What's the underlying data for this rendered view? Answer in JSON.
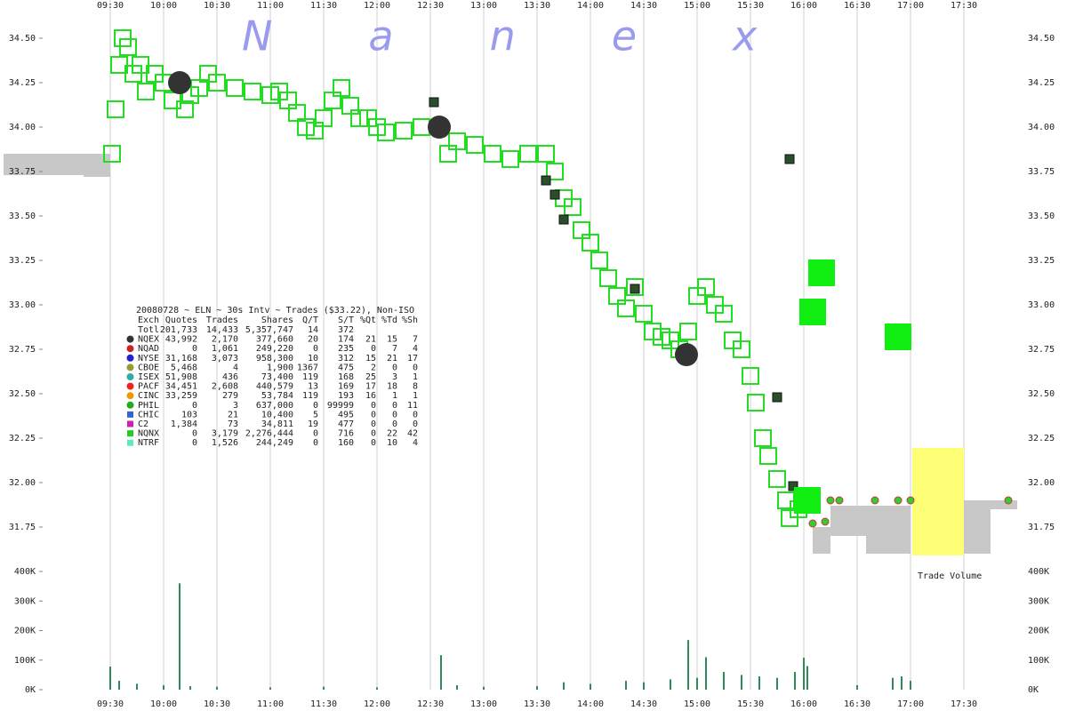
{
  "chart_data": {
    "type": "trades",
    "watermark": "Nanex",
    "annotation": "Trade Volume",
    "xlim": [
      "08:28",
      "18:28"
    ],
    "xticks": [
      "09:30",
      "10:00",
      "10:30",
      "11:00",
      "11:30",
      "12:00",
      "12:30",
      "13:00",
      "13:30",
      "14:00",
      "14:30",
      "15:00",
      "15:30",
      "16:00",
      "16:30",
      "17:00",
      "17:30"
    ],
    "grid": true,
    "ylim": [
      31.6,
      34.7
    ],
    "yticks": [
      31.75,
      {
        "value": 32,
        "label": "32.00"
      },
      32.25,
      {
        "value": 32.5,
        "label": "32.50"
      },
      32.75,
      {
        "value": 33,
        "label": "33.00"
      },
      33.25,
      {
        "value": 33.5,
        "label": "33.50"
      },
      33.75,
      {
        "value": 34,
        "label": "34.00"
      },
      34.25,
      {
        "value": 34.5,
        "label": "34.50"
      }
    ],
    "volume_ylim": [
      0,
      400000
    ],
    "volume_yticks": [
      {
        "value": 0,
        "label": "0K"
      },
      {
        "value": 100000,
        "label": "100K"
      },
      {
        "value": 200000,
        "label": "200K"
      },
      {
        "value": 300000,
        "label": "300K"
      },
      {
        "value": 400000,
        "label": "400K"
      }
    ],
    "spread": {
      "color": "#c8c8c8",
      "x": [
        "08:30",
        "09:15",
        "16:05",
        "16:15",
        "16:35",
        "17:30",
        "17:45"
      ],
      "x_end": [
        "09:15",
        "09:30",
        "16:15",
        "16:35",
        "17:00",
        "17:45",
        "18:00"
      ],
      "low": [
        33.73,
        33.72,
        31.6,
        31.7,
        31.6,
        31.6,
        31.85
      ],
      "high": [
        33.85,
        33.85,
        31.75,
        31.87,
        31.87,
        31.9,
        31.9
      ]
    },
    "series": [
      {
        "marker": "open-square",
        "color": "#22dd22",
        "x": [
          "09:31",
          "09:33",
          "09:35",
          "09:37",
          "09:40",
          "09:43",
          "09:47",
          "09:50",
          "09:55",
          "10:00",
          "10:05",
          "10:12",
          "10:15",
          "10:20",
          "10:25",
          "10:30",
          "10:40",
          "10:50",
          "11:00",
          "11:05",
          "11:10",
          "11:15",
          "11:20",
          "11:25",
          "11:30",
          "11:35",
          "11:40",
          "11:45",
          "11:50",
          "11:55",
          "12:00",
          "12:05",
          "12:15",
          "12:25",
          "12:40",
          "12:45",
          "12:55",
          "13:05",
          "13:15",
          "13:25",
          "13:35",
          "13:40",
          "13:45",
          "13:50",
          "13:55",
          "14:00",
          "14:05",
          "14:10",
          "14:15",
          "14:20",
          "14:25",
          "14:30",
          "14:35",
          "14:40",
          "14:45",
          "14:50",
          "14:55",
          "15:00",
          "15:05",
          "15:10",
          "15:15",
          "15:20",
          "15:25",
          "15:30",
          "15:33",
          "15:37",
          "15:40",
          "15:45",
          "15:50",
          "15:52",
          "15:57",
          "16:00"
        ],
        "values": [
          33.85,
          34.1,
          34.35,
          34.5,
          34.45,
          34.3,
          34.35,
          34.2,
          34.3,
          34.25,
          34.15,
          34.1,
          34.18,
          34.22,
          34.3,
          34.25,
          34.22,
          34.2,
          34.18,
          34.2,
          34.15,
          34.08,
          34.0,
          33.98,
          34.05,
          34.15,
          34.22,
          34.12,
          34.05,
          34.05,
          34.0,
          33.97,
          33.98,
          34.0,
          33.85,
          33.92,
          33.9,
          33.85,
          33.82,
          33.85,
          33.85,
          33.75,
          33.6,
          33.55,
          33.42,
          33.35,
          33.25,
          33.15,
          33.05,
          32.98,
          33.1,
          32.95,
          32.85,
          32.82,
          32.8,
          32.75,
          32.85,
          33.05,
          33.1,
          33.0,
          32.95,
          32.8,
          32.75,
          32.6,
          32.45,
          32.25,
          32.15,
          32.02,
          31.9,
          31.8,
          31.85,
          31.9
        ]
      },
      {
        "marker": "circle",
        "color": "#333333",
        "x": [
          "10:09",
          "12:35",
          "14:54"
        ],
        "values": [
          34.25,
          34.0,
          32.72
        ]
      },
      {
        "marker": "square",
        "color": "#2b4f2b",
        "x": [
          "12:32",
          "13:35",
          "13:40",
          "13:45",
          "14:25",
          "15:45",
          "15:52",
          "15:54"
        ],
        "values": [
          34.14,
          33.7,
          33.62,
          33.48,
          33.09,
          32.48,
          33.82,
          31.98
        ]
      },
      {
        "marker": "filled-square",
        "color": "#11ee11",
        "x": [
          "16:02",
          "16:05",
          "16:10",
          "16:53"
        ],
        "values": [
          31.9,
          32.96,
          33.18,
          32.82
        ]
      },
      {
        "marker": "dot",
        "color": "#33cc33",
        "x": [
          "16:05",
          "16:12",
          "16:15",
          "16:20",
          "16:40",
          "16:53",
          "17:00",
          "17:55"
        ],
        "values": [
          31.77,
          31.78,
          31.9,
          31.9,
          31.9,
          31.9,
          31.9,
          31.9
        ]
      }
    ],
    "volume": {
      "color": "#2e8b57",
      "x": [
        "09:30",
        "09:35",
        "09:45",
        "10:00",
        "10:09",
        "10:15",
        "10:30",
        "11:00",
        "11:30",
        "12:00",
        "12:36",
        "12:45",
        "13:00",
        "13:30",
        "13:45",
        "14:00",
        "14:20",
        "14:30",
        "14:45",
        "14:55",
        "15:00",
        "15:05",
        "15:15",
        "15:25",
        "15:35",
        "15:45",
        "15:55",
        "16:00",
        "16:02",
        "16:30",
        "16:50",
        "16:55",
        "17:00"
      ],
      "values": [
        78000,
        30000,
        20000,
        15000,
        360000,
        12000,
        10000,
        8000,
        10000,
        8000,
        117000,
        15000,
        10000,
        12000,
        25000,
        20000,
        30000,
        25000,
        35000,
        168000,
        40000,
        110000,
        60000,
        50000,
        45000,
        40000,
        60000,
        108000,
        80000,
        15000,
        40000,
        45000,
        30000
      ]
    },
    "legend": {
      "header": "20080728 ~ ELN ~ 30s Intv ~ Trades ($33.22), Non-ISO",
      "columns": [
        "Exch",
        "Quotes",
        "Trades",
        "Shares",
        "Q/T",
        "S/T",
        "%Qt",
        "%Td",
        "%Sh"
      ],
      "rows": [
        {
          "cells": [
            "Totl",
            "201,733",
            "14,433",
            "5,357,747",
            "14",
            "372"
          ]
        },
        {
          "cells": [
            "NQEX",
            "43,992",
            "2,170",
            "377,660",
            "20",
            "174",
            "21",
            "15",
            "7"
          ],
          "color": "#333333",
          "marker": "circle"
        },
        {
          "cells": [
            "NQAD",
            "0",
            "1,061",
            "249,220",
            "0",
            "235",
            "0",
            "7",
            "4"
          ],
          "color": "#cc2222",
          "marker": "circle"
        },
        {
          "cells": [
            "NYSE",
            "31,168",
            "3,073",
            "958,300",
            "10",
            "312",
            "15",
            "21",
            "17"
          ],
          "color": "#2222cc",
          "marker": "circle"
        },
        {
          "cells": [
            "CBOE",
            "5,468",
            "4",
            "1,900",
            "1367",
            "475",
            "2",
            "0",
            "0"
          ],
          "color": "#999933",
          "marker": "circle"
        },
        {
          "cells": [
            "ISEX",
            "51,908",
            "436",
            "73,400",
            "119",
            "168",
            "25",
            "3",
            "1"
          ],
          "color": "#33aaaa",
          "marker": "circle"
        },
        {
          "cells": [
            "PACF",
            "34,451",
            "2,608",
            "440,579",
            "13",
            "169",
            "17",
            "18",
            "8"
          ],
          "color": "#ee2222",
          "marker": "circle"
        },
        {
          "cells": [
            "CINC",
            "33,259",
            "279",
            "53,784",
            "119",
            "193",
            "16",
            "1",
            "1"
          ],
          "color": "#ee9900",
          "marker": "circle"
        },
        {
          "cells": [
            "PHIL",
            "0",
            "3",
            "637,000",
            "0",
            "99999",
            "0",
            "0",
            "11"
          ],
          "color": "#22aa22",
          "marker": "circle"
        },
        {
          "cells": [
            "CHIC",
            "103",
            "21",
            "10,400",
            "5",
            "495",
            "0",
            "0",
            "0"
          ],
          "color": "#3366cc",
          "marker": "square"
        },
        {
          "cells": [
            "C2",
            "1,384",
            "73",
            "34,811",
            "19",
            "477",
            "0",
            "0",
            "0"
          ],
          "color": "#cc22aa",
          "marker": "square"
        },
        {
          "cells": [
            "NQNX",
            "0",
            "3,179",
            "2,276,444",
            "0",
            "716",
            "0",
            "22",
            "42"
          ],
          "color": "#22cc22",
          "marker": "square"
        },
        {
          "cells": [
            "NTRF",
            "0",
            "1,526",
            "244,249",
            "0",
            "160",
            "0",
            "10",
            "4"
          ],
          "color": "#55eebb",
          "marker": "square"
        }
      ]
    }
  }
}
